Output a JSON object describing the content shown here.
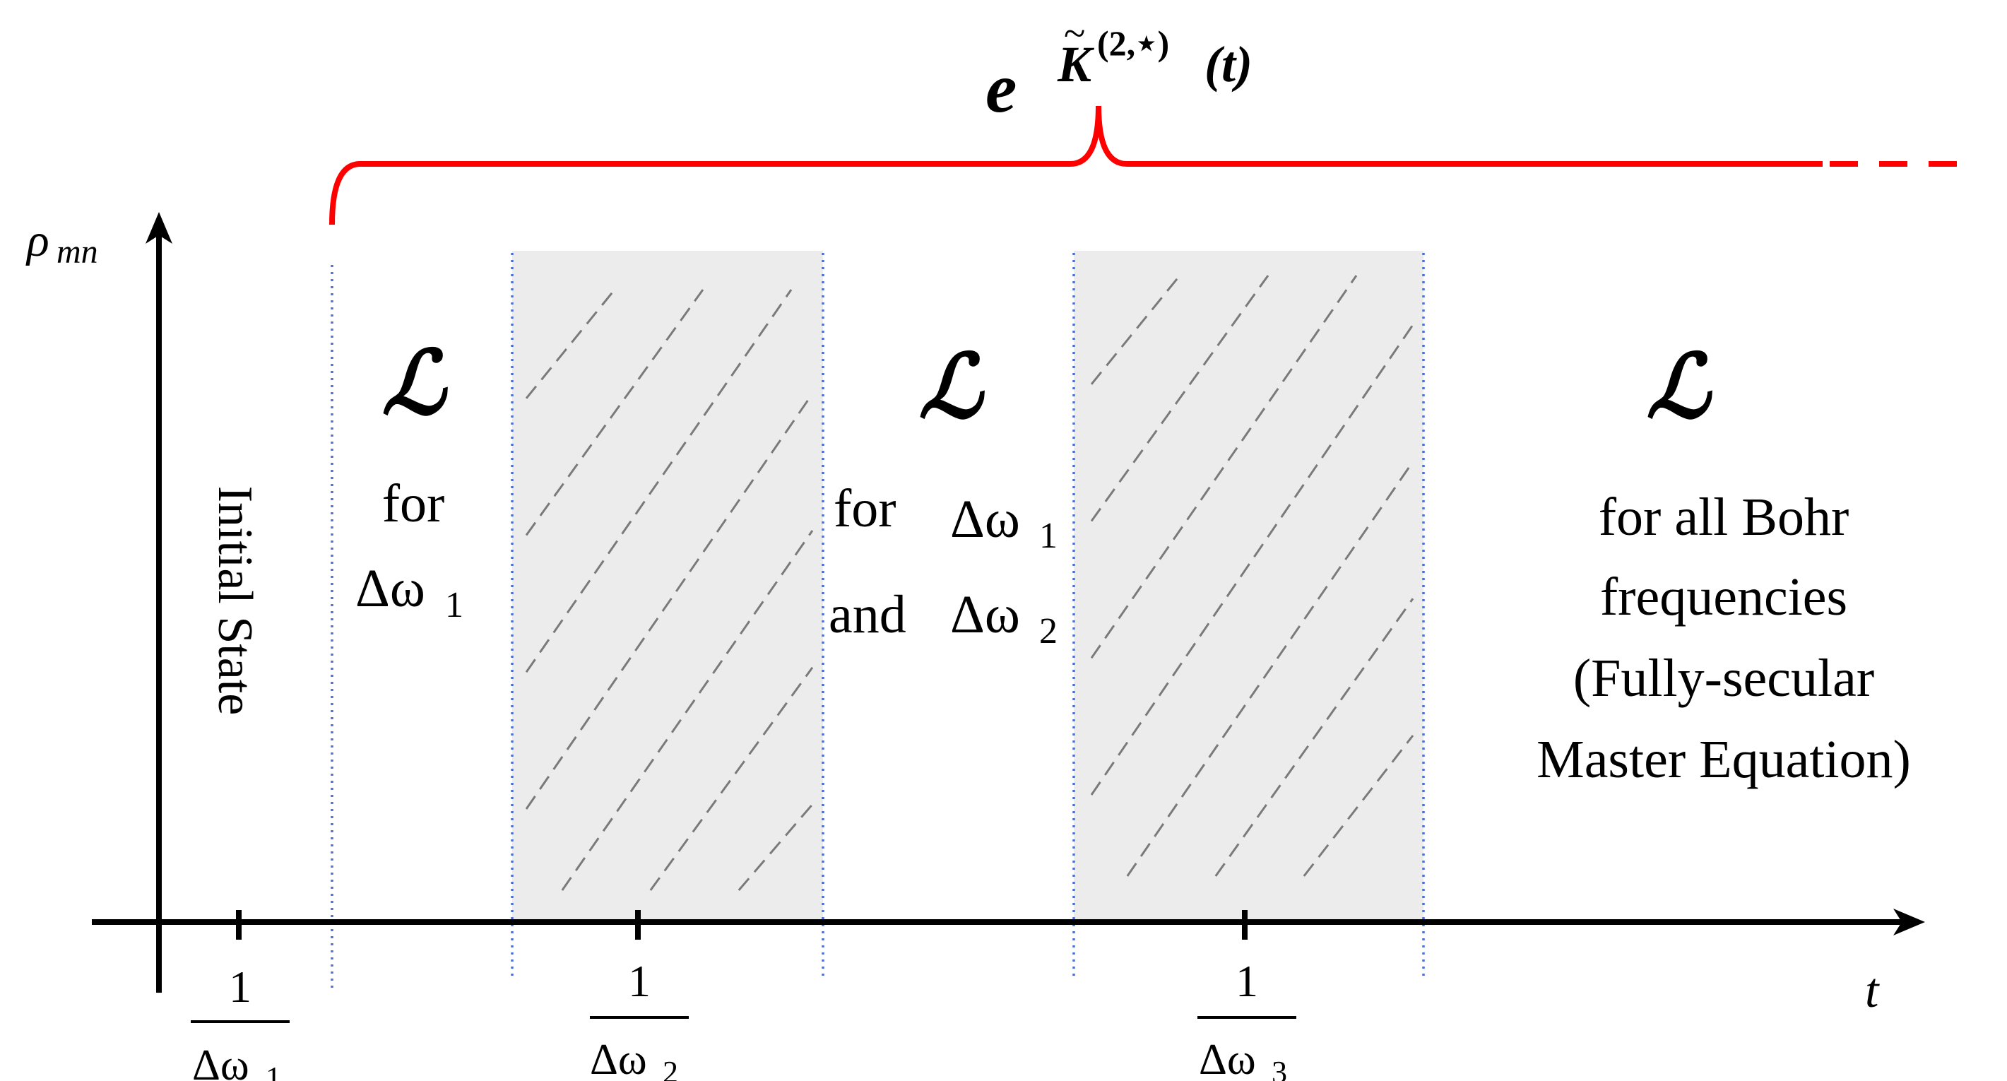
{
  "title": {
    "base": "e",
    "exponent": "K",
    "tilde": "~",
    "superscript": "(2,⋆)",
    "argument": "(t)"
  },
  "axes": {
    "y_label_main": "ρ",
    "y_label_sub": "mn",
    "x_label": "t"
  },
  "ticks": [
    {
      "numerator": "1",
      "denominator_main": "Δω",
      "denominator_sub": "1"
    },
    {
      "numerator": "1",
      "denominator_main": "Δω",
      "denominator_sub": "2"
    },
    {
      "numerator": "1",
      "denominator_main": "Δω",
      "denominator_sub": "3"
    }
  ],
  "regions": {
    "initial": {
      "label": "Initial State"
    },
    "region1": {
      "symbol": "ℒ",
      "line1": "for",
      "line2_main": "Δω",
      "line2_sub": "1"
    },
    "region2": {
      "symbol": "ℒ",
      "line1_a": "for",
      "line1_b_main": "Δω",
      "line1_b_sub": "1",
      "line2_a": "and",
      "line2_b_main": "Δω",
      "line2_b_sub": "2"
    },
    "region3": {
      "symbol": "ℒ",
      "lines": [
        "for all Bohr",
        "frequencies",
        "(Fully-secular",
        "Master Equation)"
      ]
    }
  },
  "colors": {
    "brace": "#ff0000",
    "axis": "#000000",
    "dotted_lines": "#4a6fd6",
    "shaded_fill": "#ececec",
    "hatch": "#7a7a7a"
  }
}
